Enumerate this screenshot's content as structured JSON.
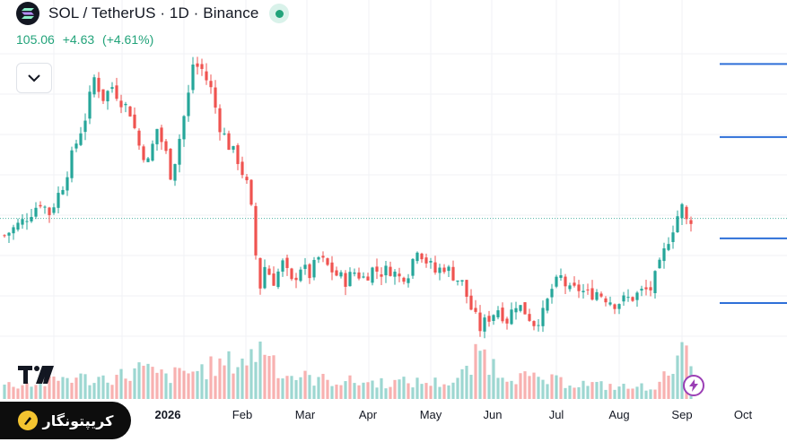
{
  "header": {
    "title": "SOL / TetherUS · 1D · Binance",
    "symbol_icon": "solana-logo-icon",
    "live_indicator": "live-dot-icon",
    "last_price": "105.06",
    "change": "+4.63",
    "change_pct": "(+4.61%)"
  },
  "toolbar": {
    "collapse_icon": "chevron-down-icon"
  },
  "branding": {
    "platform_logo": "tradingview-logo-icon",
    "snapshot_icon": "lightning-icon"
  },
  "watermark": {
    "text": "کریپتونگار",
    "icon": "coin-pen-icon"
  },
  "colors": {
    "up": "#26a69a",
    "down": "#ef5350",
    "level_line": "#2e6fd8",
    "price_line": "#4fb3a4",
    "accent": "#22a37a"
  },
  "chart_data": {
    "type": "candlestick",
    "x_ticks": [
      "2026",
      "Feb",
      "Mar",
      "Apr",
      "May",
      "Jun",
      "Jul",
      "Aug",
      "Sep",
      "Oct"
    ],
    "price_range": [
      60,
      170
    ],
    "last_price": 105.06,
    "horizontal_levels": [
      160,
      134,
      98,
      75
    ],
    "close_path": [
      [
        0,
        99
      ],
      [
        4,
        104
      ],
      [
        8,
        111
      ],
      [
        10,
        107
      ],
      [
        13,
        117
      ],
      [
        16,
        132
      ],
      [
        18,
        141
      ],
      [
        20,
        155
      ],
      [
        22,
        148
      ],
      [
        24,
        152
      ],
      [
        26,
        147
      ],
      [
        28,
        143
      ],
      [
        30,
        131
      ],
      [
        32,
        125
      ],
      [
        34,
        137
      ],
      [
        36,
        128
      ],
      [
        37,
        121
      ],
      [
        38,
        126
      ],
      [
        41,
        149
      ],
      [
        42,
        160
      ],
      [
        44,
        158
      ],
      [
        46,
        151
      ],
      [
        48,
        138
      ],
      [
        50,
        131
      ],
      [
        52,
        126
      ],
      [
        54,
        117
      ],
      [
        55,
        108
      ],
      [
        56,
        92
      ],
      [
        57,
        81
      ],
      [
        58,
        88
      ],
      [
        60,
        83
      ],
      [
        62,
        89
      ],
      [
        64,
        82
      ],
      [
        66,
        88
      ],
      [
        68,
        85
      ],
      [
        70,
        91
      ],
      [
        72,
        88
      ],
      [
        74,
        85
      ],
      [
        76,
        83
      ],
      [
        78,
        86
      ],
      [
        80,
        84
      ],
      [
        82,
        87
      ],
      [
        84,
        86
      ],
      [
        86,
        87
      ],
      [
        88,
        84
      ],
      [
        90,
        86
      ],
      [
        92,
        95
      ],
      [
        94,
        90
      ],
      [
        96,
        86
      ],
      [
        98,
        88
      ],
      [
        100,
        85
      ],
      [
        102,
        82
      ],
      [
        104,
        73
      ],
      [
        106,
        66
      ],
      [
        108,
        70
      ],
      [
        110,
        73
      ],
      [
        112,
        69
      ],
      [
        114,
        75
      ],
      [
        116,
        72
      ],
      [
        118,
        68
      ],
      [
        120,
        71
      ],
      [
        122,
        80
      ],
      [
        124,
        84
      ],
      [
        126,
        79
      ],
      [
        128,
        80
      ],
      [
        130,
        78
      ],
      [
        132,
        79
      ],
      [
        134,
        77
      ],
      [
        136,
        75
      ],
      [
        138,
        76
      ],
      [
        140,
        77
      ],
      [
        142,
        79
      ],
      [
        144,
        80
      ],
      [
        146,
        88
      ],
      [
        148,
        98
      ],
      [
        150,
        106
      ],
      [
        151,
        109
      ],
      [
        152,
        104
      ],
      [
        153,
        105
      ]
    ],
    "volume_profile": [
      [
        0,
        0.25
      ],
      [
        10,
        0.3
      ],
      [
        14,
        0.4
      ],
      [
        20,
        0.35
      ],
      [
        28,
        0.45
      ],
      [
        30,
        0.55
      ],
      [
        36,
        0.4
      ],
      [
        42,
        0.5
      ],
      [
        48,
        0.6
      ],
      [
        55,
        0.75
      ],
      [
        58,
        1.0
      ],
      [
        62,
        0.45
      ],
      [
        70,
        0.35
      ],
      [
        80,
        0.3
      ],
      [
        90,
        0.3
      ],
      [
        100,
        0.3
      ],
      [
        104,
        0.55
      ],
      [
        106,
        0.9
      ],
      [
        110,
        0.5
      ],
      [
        118,
        0.35
      ],
      [
        126,
        0.3
      ],
      [
        132,
        0.25
      ],
      [
        140,
        0.2
      ],
      [
        146,
        0.25
      ],
      [
        148,
        0.5
      ],
      [
        150,
        0.95
      ],
      [
        153,
        0.6
      ]
    ]
  }
}
